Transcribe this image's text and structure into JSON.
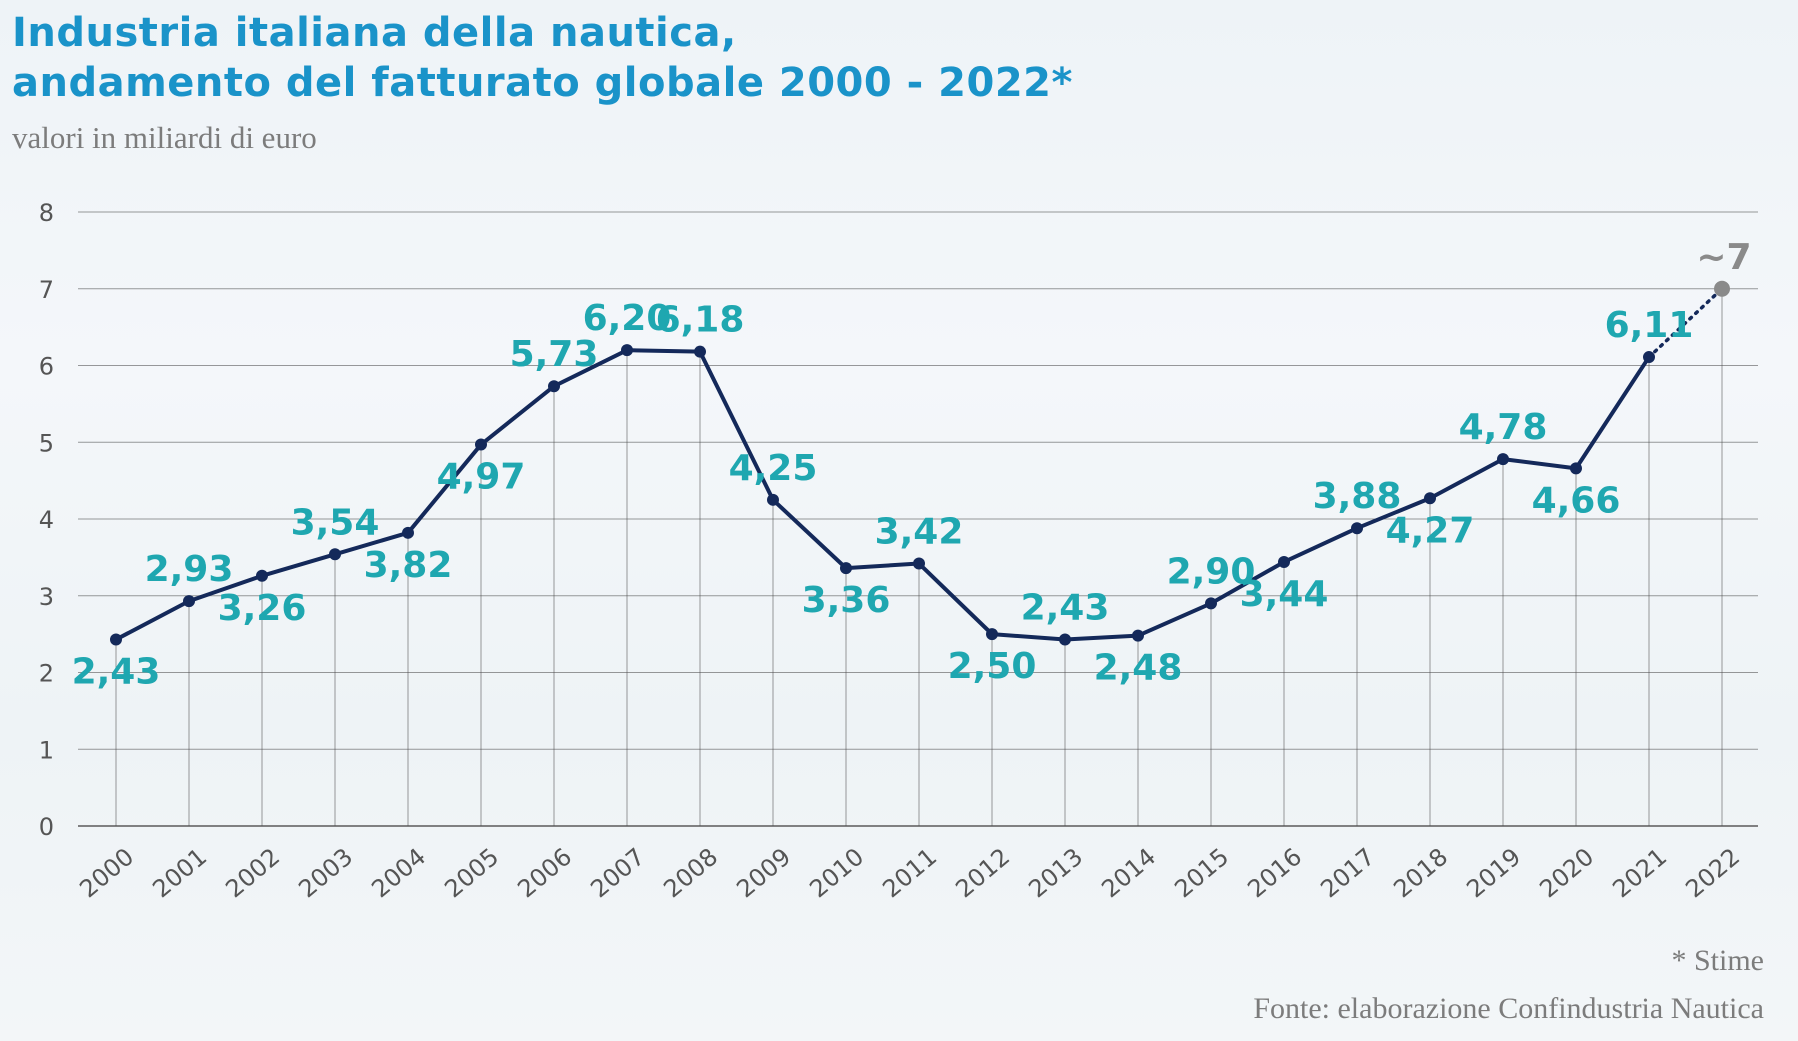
{
  "header": {
    "title_line1": "Industria italiana della nautica,",
    "title_line2": "andamento del fatturato globale 2000 - 2022*",
    "subtitle": "valori in miliardi di euro"
  },
  "footer": {
    "note": "* Stime",
    "source": "Fonte: elaborazione Confindustria Nautica"
  },
  "colors": {
    "title": "#1a93c9",
    "line": "#14295a",
    "label": "#1fa7b0",
    "estimate": "#8a8a8a",
    "grid": "#4a4a4a",
    "axis_text": "#555555"
  },
  "chart_data": {
    "type": "line",
    "categories": [
      "2000",
      "2001",
      "2002",
      "2003",
      "2004",
      "2005",
      "2006",
      "2007",
      "2008",
      "2009",
      "2010",
      "2011",
      "2012",
      "2013",
      "2014",
      "2015",
      "2016",
      "2017",
      "2018",
      "2019",
      "2020",
      "2021",
      "2022"
    ],
    "values": [
      2.43,
      2.93,
      3.26,
      3.54,
      3.82,
      4.97,
      5.73,
      6.2,
      6.18,
      4.25,
      3.36,
      3.42,
      2.5,
      2.43,
      2.48,
      2.9,
      3.44,
      3.88,
      4.27,
      4.78,
      4.66,
      6.11,
      7
    ],
    "data_labels": [
      "2,43",
      "2,93",
      "3,26",
      "3,54",
      "3,82",
      "4,97",
      "5,73",
      "6,20",
      "6,18",
      "4,25",
      "3,36",
      "3,42",
      "2,50",
      "2,43",
      "2,48",
      "2,90",
      "3,44",
      "3,88",
      "4,27",
      "4,78",
      "4,66",
      "6,11",
      "~7"
    ],
    "label_positions": [
      "below",
      "above",
      "below",
      "above",
      "below",
      "below",
      "above",
      "above",
      "above",
      "above",
      "below",
      "above",
      "below",
      "above",
      "below",
      "above",
      "below",
      "above",
      "below",
      "above",
      "below",
      "above",
      "above"
    ],
    "estimated_from_index": 21,
    "ylim": [
      0,
      8
    ],
    "yticks": [
      0,
      1,
      2,
      3,
      4,
      5,
      6,
      7,
      8
    ],
    "ytick_labels": [
      "0",
      "1",
      "2",
      "3",
      "4",
      "5",
      "6",
      "7",
      "8"
    ],
    "grid": true,
    "xlabel": "",
    "ylabel": ""
  }
}
